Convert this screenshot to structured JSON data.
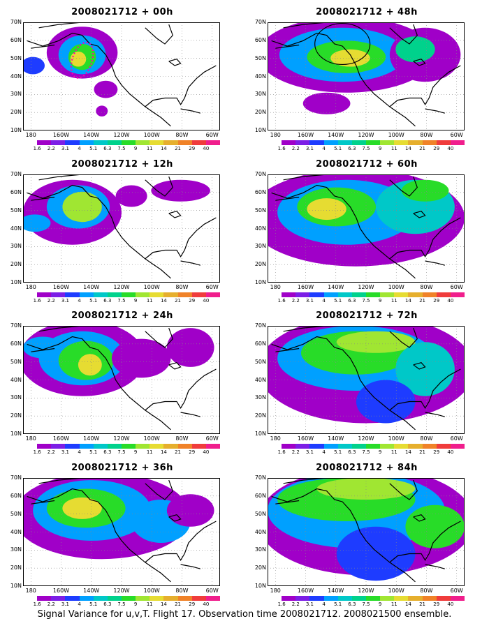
{
  "panels": [
    {
      "title": "2008021712 + 00h",
      "forecast_hour": 0
    },
    {
      "title": "2008021712 + 48h",
      "forecast_hour": 48
    },
    {
      "title": "2008021712 + 12h",
      "forecast_hour": 12
    },
    {
      "title": "2008021712 + 60h",
      "forecast_hour": 60
    },
    {
      "title": "2008021712 + 24h",
      "forecast_hour": 24
    },
    {
      "title": "2008021712 + 72h",
      "forecast_hour": 72
    },
    {
      "title": "2008021712 + 36h",
      "forecast_hour": 36
    },
    {
      "title": "2008021712 + 84h",
      "forecast_hour": 84
    }
  ],
  "lat_labels": [
    "70N",
    "60N",
    "50N",
    "40N",
    "30N",
    "20N",
    "10N"
  ],
  "lon_labels": [
    "180",
    "160W",
    "140W",
    "120W",
    "100W",
    "80W",
    "60W"
  ],
  "colorbar": {
    "labels": [
      "1.6",
      "2.2",
      "3.1",
      "4",
      "5.1",
      "6.3",
      "7.5",
      "9",
      "11",
      "14",
      "21",
      "29",
      "40"
    ],
    "colors": [
      "#ffffff",
      "#a000c8",
      "#7c1ee6",
      "#1e3cff",
      "#00a0ff",
      "#00c8c8",
      "#00d28c",
      "#28dc28",
      "#a0e632",
      "#e6dc32",
      "#e6af2d",
      "#f08228",
      "#f03c3c",
      "#f01e8c"
    ]
  },
  "caption": "Signal Variance for u,v,T. Flight 17. Observation time 2008021712. 2008021500 ensemble."
}
